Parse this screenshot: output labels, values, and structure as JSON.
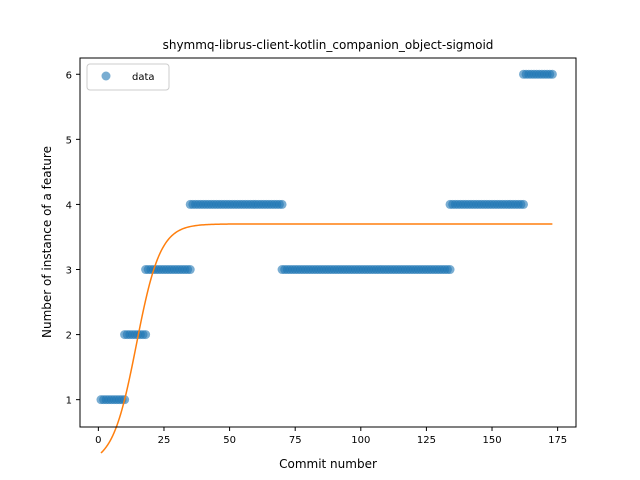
{
  "chart_data": {
    "type": "scatter",
    "title": "shymmq-librus-client-kotlin_companion_object-sigmoid",
    "xlabel": "Commit number",
    "ylabel": "Number of instance of a feature",
    "xlim": [
      -7,
      182
    ],
    "ylim": [
      0.58,
      6.25
    ],
    "xticks": [
      0,
      25,
      50,
      75,
      100,
      125,
      150,
      175
    ],
    "yticks": [
      1,
      2,
      3,
      4,
      5,
      6
    ],
    "grid": false,
    "legend": {
      "placement": "top-left",
      "entries": [
        "data"
      ]
    },
    "colors": {
      "data": "#1f77b4",
      "fit": "#ff7f0e"
    },
    "series": [
      {
        "name": "data",
        "kind": "scatter",
        "segments": [
          {
            "x_start": 1,
            "x_end": 10,
            "y": 1
          },
          {
            "x_start": 10,
            "x_end": 18,
            "y": 2
          },
          {
            "x_start": 18,
            "x_end": 35,
            "y": 3
          },
          {
            "x_start": 35,
            "x_end": 70,
            "y": 4
          },
          {
            "x_start": 70,
            "x_end": 134,
            "y": 3
          },
          {
            "x_start": 134,
            "x_end": 162,
            "y": 4
          },
          {
            "x_start": 162,
            "x_end": 173,
            "y": 6
          }
        ]
      },
      {
        "kind": "line",
        "fit": {
          "L": 3.7,
          "k": 0.22,
          "x0": 14.5,
          "x_start": 1,
          "x_end": 173
        }
      }
    ]
  }
}
